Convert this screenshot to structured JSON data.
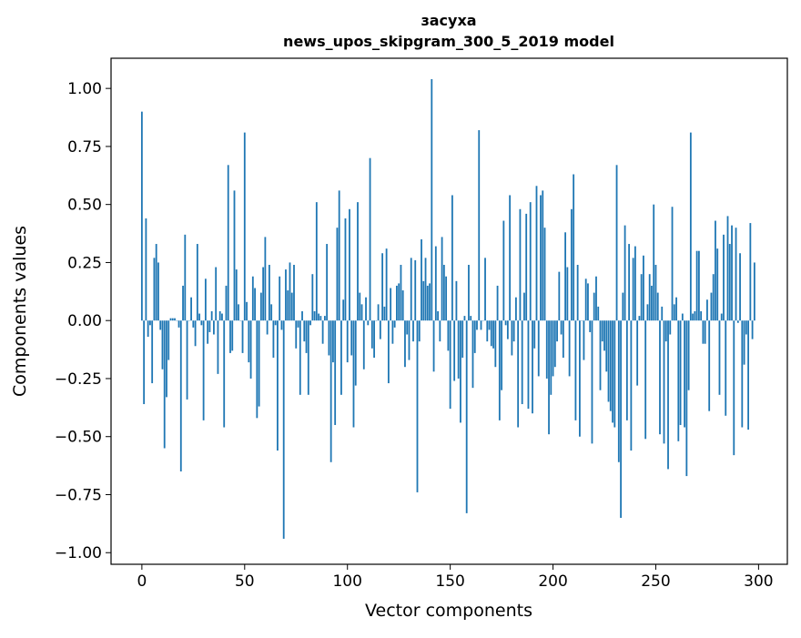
{
  "chart_data": {
    "type": "bar",
    "title": "засуха",
    "subtitle": "news_upos_skipgram_300_5_2019 model",
    "xlabel": "Vector components",
    "ylabel": "Components values",
    "xlim": [
      -15,
      314
    ],
    "ylim": [
      -1.05,
      1.13
    ],
    "xticks": [
      0,
      50,
      100,
      150,
      200,
      250,
      300
    ],
    "xtick_labels": [
      "0",
      "50",
      "100",
      "150",
      "200",
      "250",
      "300"
    ],
    "yticks": [
      -1.0,
      -0.75,
      -0.5,
      -0.25,
      0.0,
      0.25,
      0.5,
      0.75,
      1.0
    ],
    "ytick_labels": [
      "−1.00",
      "−0.75",
      "−0.50",
      "−0.25",
      "0.00",
      "0.25",
      "0.50",
      "0.75",
      "1.00"
    ],
    "grid": false,
    "bar_color": "#1f77b4",
    "values": [
      0.9,
      -0.36,
      0.44,
      -0.07,
      -0.02,
      -0.27,
      0.27,
      0.33,
      0.25,
      -0.04,
      -0.21,
      -0.55,
      -0.33,
      -0.17,
      0.01,
      0.01,
      0.01,
      0.0,
      -0.03,
      -0.65,
      0.15,
      0.37,
      -0.34,
      0.0,
      0.1,
      -0.03,
      -0.11,
      0.33,
      0.03,
      -0.02,
      -0.43,
      0.18,
      -0.1,
      -0.05,
      0.04,
      -0.06,
      0.23,
      -0.23,
      0.04,
      0.03,
      -0.46,
      0.15,
      0.67,
      -0.14,
      -0.13,
      0.56,
      0.22,
      0.07,
      0.0,
      -0.14,
      0.81,
      0.08,
      -0.18,
      -0.25,
      0.19,
      0.14,
      -0.42,
      -0.37,
      0.12,
      0.23,
      0.36,
      -0.06,
      0.24,
      0.07,
      -0.16,
      -0.02,
      -0.56,
      0.19,
      -0.04,
      -0.94,
      0.22,
      0.13,
      0.25,
      0.12,
      0.24,
      -0.12,
      -0.03,
      -0.32,
      0.04,
      -0.09,
      -0.14,
      -0.32,
      -0.02,
      0.2,
      0.04,
      0.51,
      0.03,
      0.02,
      -0.1,
      0.02,
      0.33,
      -0.15,
      -0.61,
      -0.18,
      -0.45,
      0.4,
      0.56,
      -0.32,
      0.09,
      0.44,
      -0.18,
      0.48,
      -0.15,
      -0.46,
      -0.28,
      0.51,
      0.12,
      0.07,
      -0.21,
      0.1,
      -0.02,
      0.7,
      -0.12,
      -0.16,
      0.0,
      0.07,
      -0.08,
      0.29,
      0.06,
      0.31,
      -0.27,
      0.14,
      -0.1,
      -0.03,
      0.15,
      0.16,
      0.24,
      0.13,
      -0.2,
      -0.06,
      -0.17,
      0.27,
      -0.09,
      0.26,
      -0.74,
      -0.09,
      0.35,
      0.17,
      0.27,
      0.15,
      0.16,
      1.04,
      -0.22,
      0.32,
      0.04,
      -0.09,
      0.36,
      0.24,
      0.19,
      -0.13,
      -0.38,
      0.54,
      -0.26,
      0.17,
      -0.25,
      -0.44,
      -0.16,
      0.02,
      -0.83,
      0.24,
      0.02,
      -0.29,
      -0.14,
      -0.04,
      0.82,
      -0.04,
      0.0,
      0.27,
      -0.09,
      -0.04,
      -0.11,
      -0.12,
      -0.2,
      0.15,
      -0.43,
      -0.3,
      0.43,
      -0.02,
      -0.08,
      0.54,
      -0.15,
      -0.09,
      0.1,
      -0.46,
      0.48,
      -0.36,
      0.12,
      0.46,
      -0.38,
      0.51,
      -0.4,
      -0.12,
      0.58,
      -0.24,
      0.54,
      0.56,
      0.4,
      -0.25,
      -0.49,
      -0.32,
      -0.24,
      -0.2,
      -0.09,
      0.21,
      -0.06,
      -0.16,
      0.38,
      0.23,
      -0.24,
      0.48,
      0.63,
      -0.43,
      0.24,
      -0.5,
      0.0,
      -0.17,
      0.18,
      0.16,
      -0.05,
      -0.53,
      0.12,
      0.19,
      0.06,
      -0.3,
      -0.09,
      -0.13,
      -0.22,
      -0.35,
      -0.39,
      -0.44,
      -0.46,
      0.67,
      -0.61,
      -0.85,
      0.12,
      0.41,
      -0.43,
      0.33,
      -0.56,
      0.27,
      0.32,
      -0.28,
      0.02,
      0.2,
      0.28,
      -0.51,
      0.07,
      0.2,
      0.15,
      0.5,
      0.24,
      0.12,
      -0.49,
      0.06,
      -0.53,
      -0.09,
      -0.64,
      -0.06,
      0.49,
      0.07,
      0.1,
      -0.52,
      -0.45,
      0.03,
      -0.46,
      -0.67,
      -0.3,
      0.81,
      0.03,
      0.04,
      0.3,
      0.3,
      0.04,
      -0.1,
      -0.1,
      0.09,
      -0.39,
      0.12,
      0.2,
      0.43,
      0.31,
      -0.32,
      0.03,
      0.37,
      -0.41,
      0.45,
      0.33,
      0.41,
      -0.58,
      0.4,
      -0.01,
      0.29,
      -0.46,
      -0.19,
      -0.06,
      -0.47,
      0.42,
      -0.08,
      0.25
    ]
  }
}
